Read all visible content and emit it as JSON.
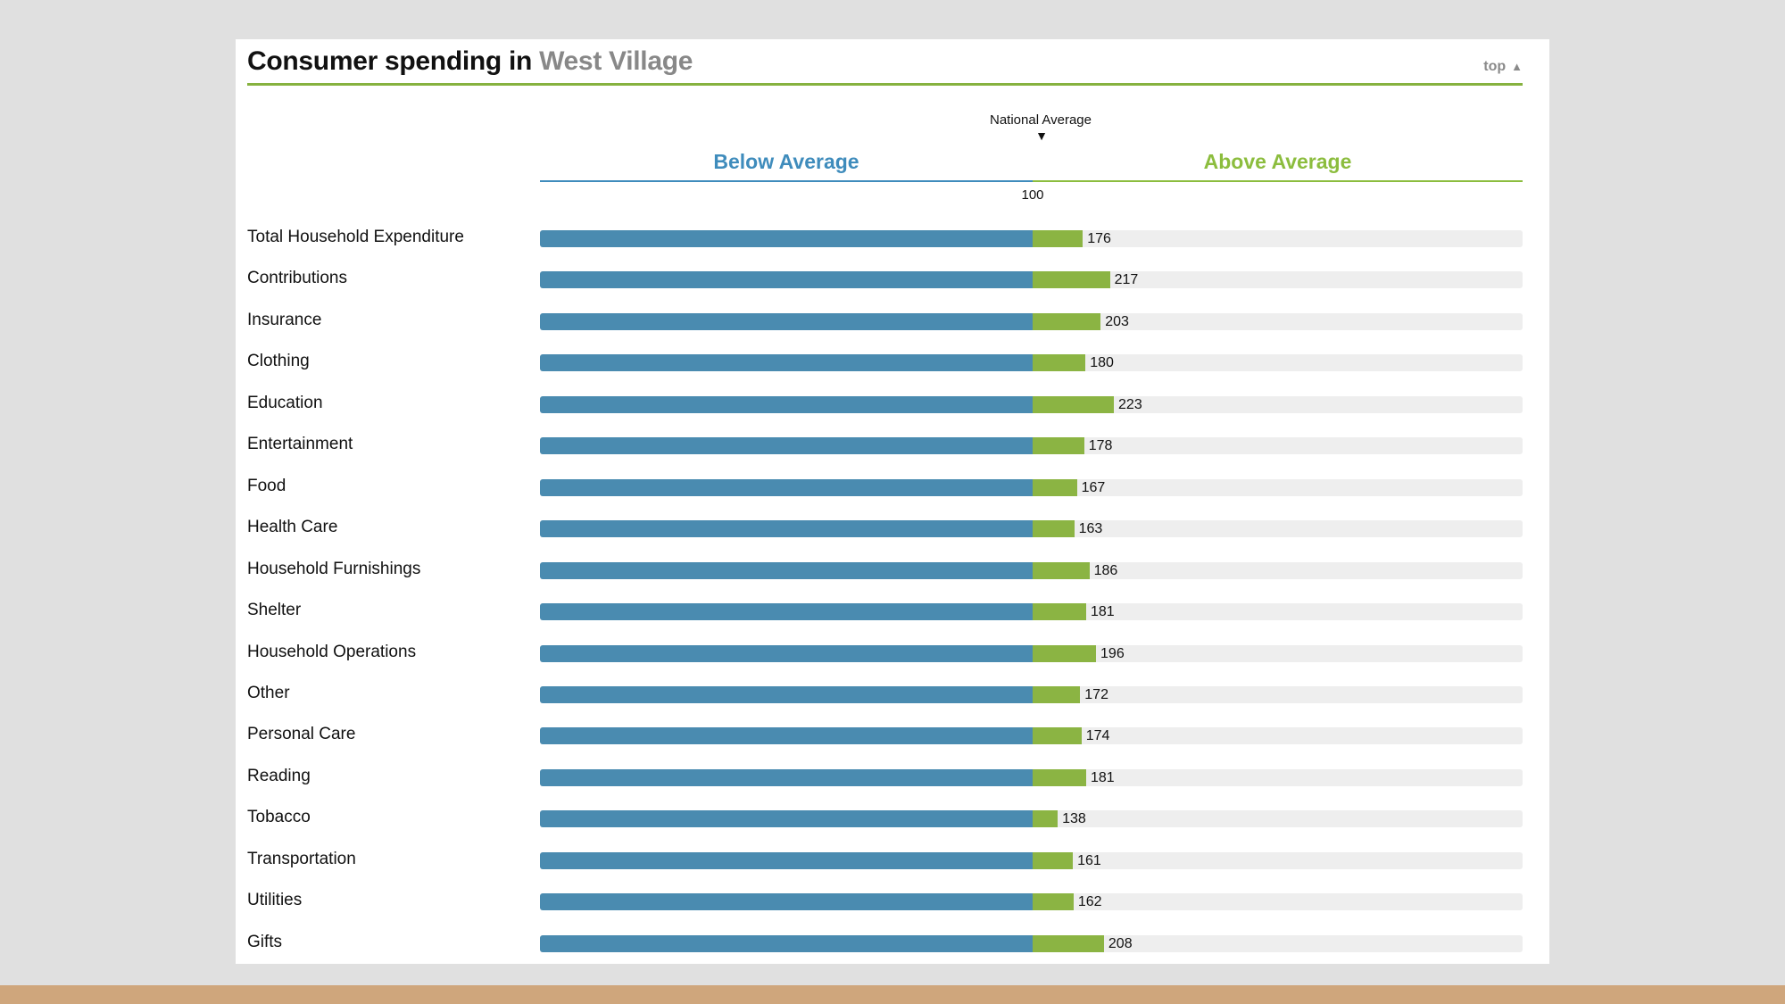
{
  "header": {
    "title_prefix": "Consumer spending in",
    "title_place": "West Village",
    "top_link": "top",
    "top_arrow": "▲"
  },
  "legend": {
    "national_average": "National Average",
    "marker": "▼",
    "below": "Below Average",
    "above": "Above Average",
    "baseline_value": "100"
  },
  "colors": {
    "below": "#4a8bb0",
    "above": "#8bb443",
    "track": "#eeeeee",
    "rule": "#86b23f"
  },
  "chart_data": {
    "type": "bar",
    "orientation": "horizontal",
    "baseline": 100,
    "title": "Consumer spending in West Village",
    "categories": [
      "Total Household Expenditure",
      "Contributions",
      "Insurance",
      "Clothing",
      "Education",
      "Entertainment",
      "Food",
      "Health Care",
      "Household Furnishings",
      "Shelter",
      "Household Operations",
      "Other",
      "Personal Care",
      "Reading",
      "Tobacco",
      "Transportation",
      "Utilities",
      "Gifts"
    ],
    "values": [
      176,
      217,
      203,
      180,
      223,
      178,
      167,
      163,
      186,
      181,
      196,
      172,
      174,
      181,
      138,
      161,
      162,
      208
    ],
    "xlim": [
      0,
      400
    ]
  }
}
